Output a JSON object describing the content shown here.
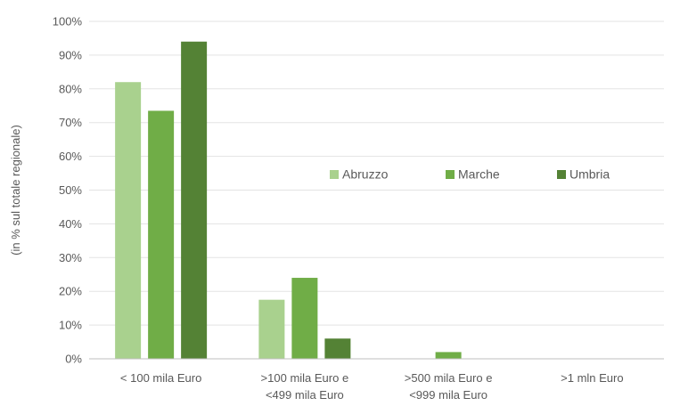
{
  "chart_data": {
    "type": "bar",
    "ylabel": "(in % sul totale regionale)",
    "ylim": [
      0,
      100
    ],
    "y_ticks": [
      0,
      10,
      20,
      30,
      40,
      50,
      60,
      70,
      80,
      90,
      100
    ],
    "y_tick_labels": [
      "0%",
      "10%",
      "20%",
      "30%",
      "40%",
      "50%",
      "60%",
      "70%",
      "80%",
      "90%",
      "100%"
    ],
    "grid": true,
    "legend_position": "center-right inside plot",
    "categories": [
      [
        "< 100 mila Euro"
      ],
      [
        ">100 mila Euro e",
        "<499 mila Euro"
      ],
      [
        ">500 mila Euro e",
        "<999 mila Euro"
      ],
      [
        ">1 mln Euro"
      ]
    ],
    "series": [
      {
        "name": "Abruzzo",
        "color": "#a9d18e",
        "values": [
          82,
          17.5,
          0,
          0
        ]
      },
      {
        "name": "Marche",
        "color": "#70ad47",
        "values": [
          73.5,
          24,
          2,
          0
        ]
      },
      {
        "name": "Umbria",
        "color": "#548235",
        "values": [
          94,
          6,
          0,
          0
        ]
      }
    ]
  }
}
